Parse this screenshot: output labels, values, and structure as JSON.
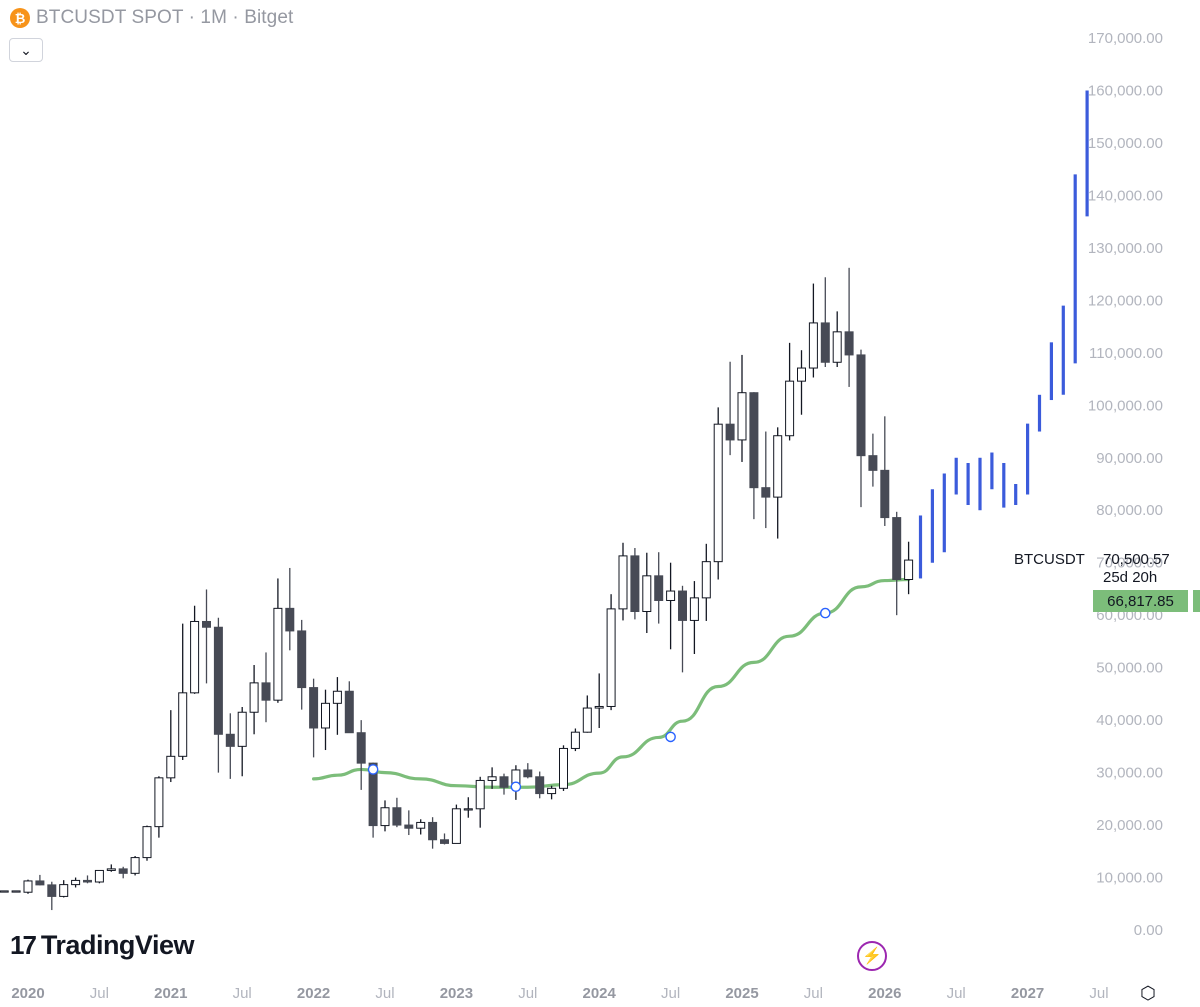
{
  "header": {
    "title": "BTCUSDT SPOT · 1M · Bitget",
    "icon": "bitcoin-icon",
    "icon_glyph": "₿"
  },
  "collapse_button": {
    "icon": "chevron-down-icon",
    "glyph": "⌄"
  },
  "logo": {
    "mark": "17",
    "text": "TradingView"
  },
  "bolt_button": {
    "icon": "lightning-icon",
    "glyph": "⚡"
  },
  "settings_button": {
    "icon": "settings-icon",
    "glyph": "⬡"
  },
  "price_labels": {
    "symbol": "BTCUSDT",
    "last_price": "70,500.57",
    "countdown": "25d 20h",
    "ma_value": "66,817.85"
  },
  "colors": {
    "up_border": "#131722",
    "up_fill": "#ffffff",
    "down_fill": "#474a55",
    "ma_line": "#7cbd7a",
    "projection": "#3b5bdb",
    "axis_text": "#b2b5be",
    "marker": "#2962ff"
  },
  "chart_data": {
    "type": "candlestick",
    "title": "BTCUSDT SPOT · 1M · Bitget",
    "ylim": [
      0,
      175000
    ],
    "y_ticks": [
      0,
      10000,
      20000,
      30000,
      40000,
      50000,
      60000,
      70000,
      80000,
      90000,
      100000,
      110000,
      120000,
      130000,
      140000,
      150000,
      160000,
      170000
    ],
    "y_tick_labels": [
      "0.00",
      "10,000.00",
      "20,000.00",
      "30,000.00",
      "40,000.00",
      "50,000.00",
      "60,000.00",
      "70,000.00",
      "80,000.00",
      "90,000.00",
      "100,000.00",
      "110,000.00",
      "120,000.00",
      "130,000.00",
      "140,000.00",
      "150,000.00",
      "160,000.00",
      "170,000.00"
    ],
    "x_ticks": [
      {
        "label": "2020",
        "date": "2020-01",
        "bold": true
      },
      {
        "label": "Jul",
        "date": "2020-07",
        "bold": false
      },
      {
        "label": "2021",
        "date": "2021-01",
        "bold": true
      },
      {
        "label": "Jul",
        "date": "2021-07",
        "bold": false
      },
      {
        "label": "2022",
        "date": "2022-01",
        "bold": true
      },
      {
        "label": "Jul",
        "date": "2022-07",
        "bold": false
      },
      {
        "label": "2023",
        "date": "2023-01",
        "bold": true
      },
      {
        "label": "Jul",
        "date": "2023-07",
        "bold": false
      },
      {
        "label": "2024",
        "date": "2024-01",
        "bold": true
      },
      {
        "label": "Jul",
        "date": "2024-07",
        "bold": false
      },
      {
        "label": "2025",
        "date": "2025-01",
        "bold": true
      },
      {
        "label": "Jul",
        "date": "2025-07",
        "bold": false
      },
      {
        "label": "2026",
        "date": "2026-01",
        "bold": true
      },
      {
        "label": "Jul",
        "date": "2026-07",
        "bold": false
      },
      {
        "label": "2027",
        "date": "2027-01",
        "bold": true
      },
      {
        "label": "Jul",
        "date": "2027-07",
        "bold": false
      }
    ],
    "candles": [
      {
        "t": "2019-11",
        "o": 7400,
        "h": 7500,
        "l": 7300,
        "c": 7450
      },
      {
        "t": "2019-12",
        "o": 7450,
        "h": 7500,
        "l": 7400,
        "c": 7450
      },
      {
        "t": "2020-01",
        "o": 7200,
        "h": 9600,
        "l": 6900,
        "c": 9350
      },
      {
        "t": "2020-02",
        "o": 9350,
        "h": 10500,
        "l": 8500,
        "c": 8600
      },
      {
        "t": "2020-03",
        "o": 8600,
        "h": 9200,
        "l": 3800,
        "c": 6400
      },
      {
        "t": "2020-04",
        "o": 6400,
        "h": 9500,
        "l": 6200,
        "c": 8650
      },
      {
        "t": "2020-05",
        "o": 8650,
        "h": 10000,
        "l": 8100,
        "c": 9450
      },
      {
        "t": "2020-06",
        "o": 9450,
        "h": 10400,
        "l": 8900,
        "c": 9150
      },
      {
        "t": "2020-07",
        "o": 9150,
        "h": 11400,
        "l": 8900,
        "c": 11350
      },
      {
        "t": "2020-08",
        "o": 11350,
        "h": 12500,
        "l": 11100,
        "c": 11650
      },
      {
        "t": "2020-09",
        "o": 11650,
        "h": 12050,
        "l": 9850,
        "c": 10800
      },
      {
        "t": "2020-10",
        "o": 10800,
        "h": 14100,
        "l": 10400,
        "c": 13800
      },
      {
        "t": "2020-11",
        "o": 13800,
        "h": 19900,
        "l": 13200,
        "c": 19700
      },
      {
        "t": "2020-12",
        "o": 19700,
        "h": 29300,
        "l": 17600,
        "c": 29000
      },
      {
        "t": "2021-01",
        "o": 29000,
        "h": 41900,
        "l": 28200,
        "c": 33100
      },
      {
        "t": "2021-02",
        "o": 33100,
        "h": 58400,
        "l": 32400,
        "c": 45200
      },
      {
        "t": "2021-03",
        "o": 45200,
        "h": 61800,
        "l": 45000,
        "c": 58800
      },
      {
        "t": "2021-04",
        "o": 58800,
        "h": 64900,
        "l": 47000,
        "c": 57700
      },
      {
        "t": "2021-05",
        "o": 57700,
        "h": 59500,
        "l": 30000,
        "c": 37300
      },
      {
        "t": "2021-06",
        "o": 37300,
        "h": 41300,
        "l": 28800,
        "c": 35000
      },
      {
        "t": "2021-07",
        "o": 35000,
        "h": 42500,
        "l": 29300,
        "c": 41500
      },
      {
        "t": "2021-08",
        "o": 41500,
        "h": 50500,
        "l": 37300,
        "c": 47100
      },
      {
        "t": "2021-09",
        "o": 47100,
        "h": 52900,
        "l": 39600,
        "c": 43800
      },
      {
        "t": "2021-10",
        "o": 43800,
        "h": 67000,
        "l": 43300,
        "c": 61300
      },
      {
        "t": "2021-11",
        "o": 61300,
        "h": 69000,
        "l": 53300,
        "c": 57000
      },
      {
        "t": "2021-12",
        "o": 57000,
        "h": 59100,
        "l": 42000,
        "c": 46200
      },
      {
        "t": "2022-01",
        "o": 46200,
        "h": 47900,
        "l": 32900,
        "c": 38500
      },
      {
        "t": "2022-02",
        "o": 38500,
        "h": 45800,
        "l": 34300,
        "c": 43200
      },
      {
        "t": "2022-03",
        "o": 43200,
        "h": 48200,
        "l": 37200,
        "c": 45500
      },
      {
        "t": "2022-04",
        "o": 45500,
        "h": 47400,
        "l": 37700,
        "c": 37600
      },
      {
        "t": "2022-05",
        "o": 37600,
        "h": 40000,
        "l": 26700,
        "c": 31800
      },
      {
        "t": "2022-06",
        "o": 31800,
        "h": 31900,
        "l": 17600,
        "c": 19900
      },
      {
        "t": "2022-07",
        "o": 19900,
        "h": 24700,
        "l": 18800,
        "c": 23300
      },
      {
        "t": "2022-08",
        "o": 23300,
        "h": 25200,
        "l": 19600,
        "c": 20000
      },
      {
        "t": "2022-09",
        "o": 20000,
        "h": 22800,
        "l": 18100,
        "c": 19400
      },
      {
        "t": "2022-10",
        "o": 19400,
        "h": 21100,
        "l": 18200,
        "c": 20500
      },
      {
        "t": "2022-11",
        "o": 20500,
        "h": 21500,
        "l": 15500,
        "c": 17200
      },
      {
        "t": "2022-12",
        "o": 17200,
        "h": 18400,
        "l": 16300,
        "c": 16500
      },
      {
        "t": "2023-01",
        "o": 16500,
        "h": 23900,
        "l": 16500,
        "c": 23100
      },
      {
        "t": "2023-02",
        "o": 23100,
        "h": 25300,
        "l": 21400,
        "c": 23100
      },
      {
        "t": "2023-03",
        "o": 23100,
        "h": 29200,
        "l": 19500,
        "c": 28500
      },
      {
        "t": "2023-04",
        "o": 28500,
        "h": 31000,
        "l": 26900,
        "c": 29200
      },
      {
        "t": "2023-05",
        "o": 29200,
        "h": 29800,
        "l": 25800,
        "c": 27200
      },
      {
        "t": "2023-06",
        "o": 27200,
        "h": 31400,
        "l": 24800,
        "c": 30500
      },
      {
        "t": "2023-07",
        "o": 30500,
        "h": 31800,
        "l": 28900,
        "c": 29200
      },
      {
        "t": "2023-08",
        "o": 29200,
        "h": 30200,
        "l": 25100,
        "c": 26000
      },
      {
        "t": "2023-09",
        "o": 26000,
        "h": 27500,
        "l": 24900,
        "c": 27000
      },
      {
        "t": "2023-10",
        "o": 27000,
        "h": 35200,
        "l": 26500,
        "c": 34600
      },
      {
        "t": "2023-11",
        "o": 34600,
        "h": 38400,
        "l": 34100,
        "c": 37700
      },
      {
        "t": "2023-12",
        "o": 37700,
        "h": 44700,
        "l": 37600,
        "c": 42300
      },
      {
        "t": "2024-01",
        "o": 42300,
        "h": 48900,
        "l": 38500,
        "c": 42600
      },
      {
        "t": "2024-02",
        "o": 42600,
        "h": 64000,
        "l": 41900,
        "c": 61200
      },
      {
        "t": "2024-03",
        "o": 61200,
        "h": 73800,
        "l": 59000,
        "c": 71300
      },
      {
        "t": "2024-04",
        "o": 71300,
        "h": 72800,
        "l": 59200,
        "c": 60700
      },
      {
        "t": "2024-05",
        "o": 60700,
        "h": 71900,
        "l": 56600,
        "c": 67500
      },
      {
        "t": "2024-06",
        "o": 67500,
        "h": 72000,
        "l": 58400,
        "c": 62800
      },
      {
        "t": "2024-07",
        "o": 62800,
        "h": 70000,
        "l": 53500,
        "c": 64600
      },
      {
        "t": "2024-08",
        "o": 64600,
        "h": 65600,
        "l": 49100,
        "c": 59000
      },
      {
        "t": "2024-09",
        "o": 59000,
        "h": 66500,
        "l": 52600,
        "c": 63300
      },
      {
        "t": "2024-10",
        "o": 63300,
        "h": 73600,
        "l": 58900,
        "c": 70200
      },
      {
        "t": "2024-11",
        "o": 70200,
        "h": 99600,
        "l": 66800,
        "c": 96400
      },
      {
        "t": "2024-12",
        "o": 96400,
        "h": 108300,
        "l": 90500,
        "c": 93400
      },
      {
        "t": "2025-01",
        "o": 93400,
        "h": 109600,
        "l": 89200,
        "c": 102400
      },
      {
        "t": "2025-02",
        "o": 102400,
        "h": 102500,
        "l": 78300,
        "c": 84300
      },
      {
        "t": "2025-03",
        "o": 84300,
        "h": 95000,
        "l": 76600,
        "c": 82500
      },
      {
        "t": "2025-04",
        "o": 82500,
        "h": 95800,
        "l": 74600,
        "c": 94200
      },
      {
        "t": "2025-05",
        "o": 94200,
        "h": 111900,
        "l": 93300,
        "c": 104600
      },
      {
        "t": "2025-06",
        "o": 104600,
        "h": 110500,
        "l": 98200,
        "c": 107100
      },
      {
        "t": "2025-07",
        "o": 107100,
        "h": 123200,
        "l": 105300,
        "c": 115700
      },
      {
        "t": "2025-08",
        "o": 115700,
        "h": 124400,
        "l": 107300,
        "c": 108200
      },
      {
        "t": "2025-09",
        "o": 108200,
        "h": 117900,
        "l": 107300,
        "c": 114000
      },
      {
        "t": "2025-10",
        "o": 114000,
        "h": 126200,
        "l": 103500,
        "c": 109600
      },
      {
        "t": "2025-11",
        "o": 109600,
        "h": 110600,
        "l": 80600,
        "c": 90400
      },
      {
        "t": "2025-12",
        "o": 90400,
        "h": 94600,
        "l": 84500,
        "c": 87600
      },
      {
        "t": "2026-01",
        "o": 87600,
        "h": 97900,
        "l": 77000,
        "c": 78600
      },
      {
        "t": "2026-02",
        "o": 78600,
        "h": 79700,
        "l": 60000,
        "c": 66800
      },
      {
        "t": "2026-03",
        "o": 66800,
        "h": 74000,
        "l": 64000,
        "c": 70500
      }
    ],
    "moving_average": [
      {
        "t": "2022-01",
        "v": 28800
      },
      {
        "t": "2022-03",
        "v": 29500
      },
      {
        "t": "2022-05",
        "v": 30600
      },
      {
        "t": "2022-07",
        "v": 30000
      },
      {
        "t": "2022-10",
        "v": 28800
      },
      {
        "t": "2023-01",
        "v": 27500
      },
      {
        "t": "2023-04",
        "v": 27200
      },
      {
        "t": "2023-07",
        "v": 27200
      },
      {
        "t": "2023-10",
        "v": 27700
      },
      {
        "t": "2024-01",
        "v": 29900
      },
      {
        "t": "2024-03",
        "v": 33000
      },
      {
        "t": "2024-06",
        "v": 36700
      },
      {
        "t": "2024-08",
        "v": 39800
      },
      {
        "t": "2024-11",
        "v": 46400
      },
      {
        "t": "2025-02",
        "v": 51000
      },
      {
        "t": "2025-05",
        "v": 56000
      },
      {
        "t": "2025-08",
        "v": 60400
      },
      {
        "t": "2025-11",
        "v": 65400
      },
      {
        "t": "2026-01",
        "v": 66600
      },
      {
        "t": "2026-03",
        "v": 66800
      }
    ],
    "ma_markers": [
      {
        "t": "2022-06",
        "v": 30600
      },
      {
        "t": "2023-06",
        "v": 27300
      },
      {
        "t": "2024-07",
        "v": 36800
      },
      {
        "t": "2025-08",
        "v": 60400
      }
    ],
    "projection": [
      {
        "t": "2026-04",
        "low": 67000,
        "high": 79000
      },
      {
        "t": "2026-05",
        "low": 70000,
        "high": 84000
      },
      {
        "t": "2026-06",
        "low": 72000,
        "high": 87000
      },
      {
        "t": "2026-07",
        "low": 83000,
        "high": 90000
      },
      {
        "t": "2026-08",
        "low": 81000,
        "high": 89000
      },
      {
        "t": "2026-09",
        "low": 80000,
        "high": 90000
      },
      {
        "t": "2026-10",
        "low": 84000,
        "high": 91000
      },
      {
        "t": "2026-11",
        "low": 80500,
        "high": 89000
      },
      {
        "t": "2026-12",
        "low": 81000,
        "high": 85000
      },
      {
        "t": "2027-01",
        "low": 83000,
        "high": 96500
      },
      {
        "t": "2027-02",
        "low": 95000,
        "high": 102000
      },
      {
        "t": "2027-03",
        "low": 101000,
        "high": 112000
      },
      {
        "t": "2027-04",
        "low": 102000,
        "high": 119000
      },
      {
        "t": "2027-05",
        "low": 108000,
        "high": 144000
      },
      {
        "t": "2027-06",
        "low": 136000,
        "high": 160000
      }
    ]
  }
}
